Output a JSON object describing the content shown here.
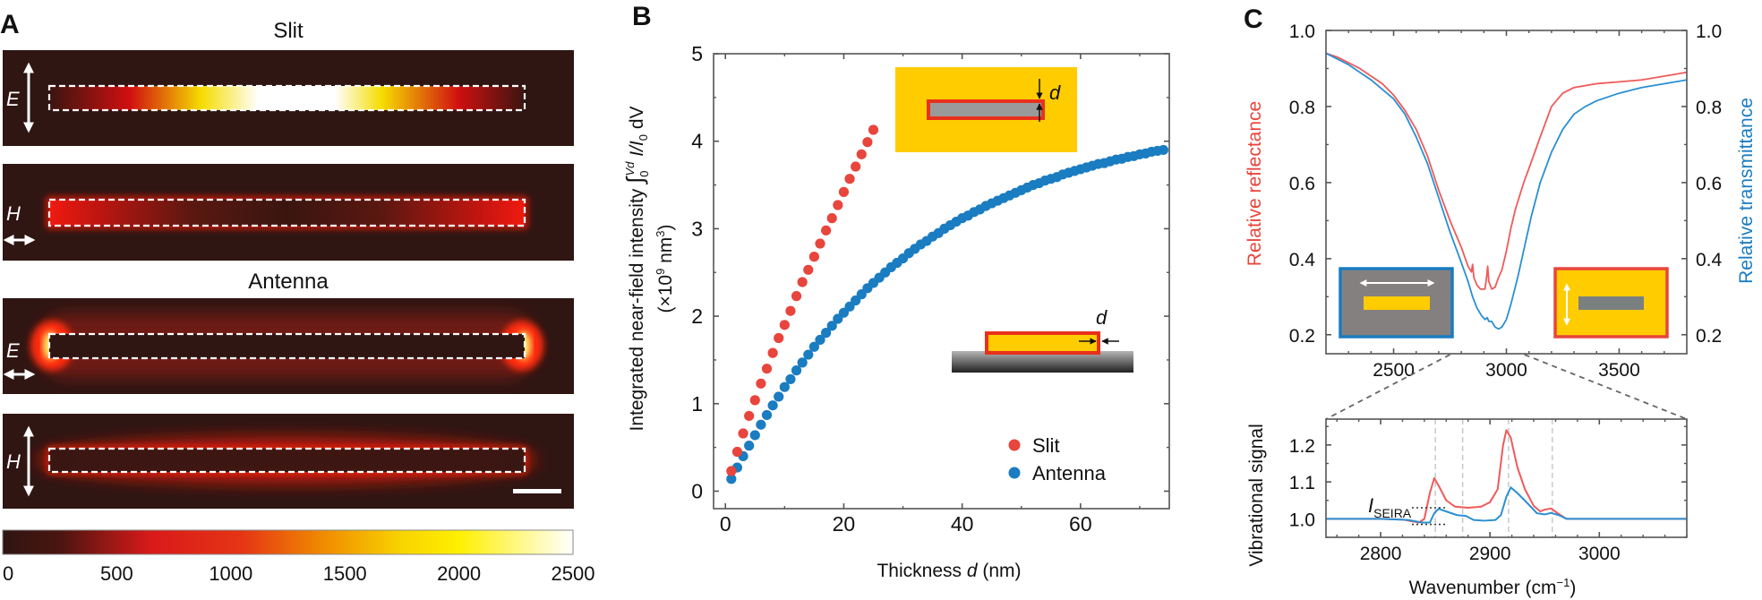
{
  "panel_labels": {
    "a": "A",
    "b": "B",
    "c": "C"
  },
  "panel_a": {
    "titles": {
      "slit": "Slit",
      "antenna": "Antenna"
    },
    "maps": [
      {
        "structure": "Slit",
        "field": "E",
        "polarization": "vertical"
      },
      {
        "structure": "Slit",
        "field": "H",
        "polarization": "horizontal"
      },
      {
        "structure": "Antenna",
        "field": "E",
        "polarization": "horizontal"
      },
      {
        "structure": "Antenna",
        "field": "H",
        "polarization": "vertical"
      }
    ],
    "colorbar": {
      "range": [
        0,
        2500
      ],
      "ticks": [
        "0",
        "500",
        "1000",
        "1500",
        "2000",
        "2500"
      ],
      "colormap": [
        "#2e1512",
        "#d81a1a",
        "#f08000",
        "#fff200",
        "#ffffff"
      ]
    },
    "colors": {
      "background": "#2f1613",
      "outline": "#ffffff"
    }
  },
  "chart_data": [
    {
      "panel": "B",
      "type": "scatter",
      "xlabel": {
        "pre": "Thickness ",
        "var": "d",
        "post": " (nm)"
      },
      "ylabel": {
        "line1": "Integrated near-field intensity ",
        "integral": "∫",
        "lower": "0",
        "upper": "Vd",
        "mid": " I/I",
        "sub": "0",
        "end": " dV",
        "line2_pre": "(×10",
        "line2_exp": "9",
        "line2_mid": " nm",
        "line2_exp2": "3",
        "line2_end": ")"
      },
      "xlim": [
        -2,
        75
      ],
      "ylim": [
        -0.2,
        5
      ],
      "xticks": [
        "0",
        "20",
        "40",
        "60"
      ],
      "xtick_values": [
        0,
        20,
        40,
        60
      ],
      "yticks": [
        "0",
        "1",
        "2",
        "3",
        "4",
        "5"
      ],
      "ytick_values": [
        0,
        1,
        2,
        3,
        4,
        5
      ],
      "legend": {
        "position": "bottom-right",
        "entries": [
          "Slit",
          "Antenna"
        ]
      },
      "inset_labels": {
        "top": "d",
        "bottom": "d"
      },
      "series": [
        {
          "name": "Slit",
          "color": "#e8453c",
          "x": [
            1,
            2,
            3,
            4,
            5,
            6,
            7,
            8,
            9,
            10,
            11,
            12,
            13,
            14,
            15,
            16,
            17,
            18,
            19,
            20,
            21,
            22,
            23,
            24,
            25
          ],
          "y": [
            0.23,
            0.45,
            0.66,
            0.86,
            1.04,
            1.23,
            1.4,
            1.58,
            1.75,
            1.9,
            2.06,
            2.23,
            2.39,
            2.53,
            2.68,
            2.83,
            2.98,
            3.12,
            3.27,
            3.42,
            3.57,
            3.71,
            3.85,
            3.99,
            4.13
          ]
        },
        {
          "name": "Antenna",
          "color": "#1a7cc1",
          "x": [
            1,
            2,
            3,
            4,
            5,
            6,
            7,
            8,
            9,
            10,
            11,
            12,
            13,
            14,
            15,
            16,
            17,
            18,
            19,
            20,
            21,
            22,
            23,
            24,
            25,
            26,
            27,
            28,
            29,
            30,
            31,
            32,
            33,
            34,
            35,
            36,
            37,
            38,
            39,
            40,
            41,
            42,
            43,
            44,
            45,
            46,
            47,
            48,
            49,
            50,
            51,
            52,
            53,
            54,
            55,
            56,
            57,
            58,
            59,
            60,
            61,
            62,
            63,
            64,
            65,
            66,
            67,
            68,
            69,
            70,
            71,
            72,
            73,
            74
          ],
          "y": [
            0.14,
            0.27,
            0.4,
            0.52,
            0.64,
            0.76,
            0.87,
            0.98,
            1.08,
            1.19,
            1.28,
            1.38,
            1.47,
            1.56,
            1.65,
            1.73,
            1.81,
            1.89,
            1.97,
            2.04,
            2.11,
            2.18,
            2.25,
            2.32,
            2.38,
            2.44,
            2.5,
            2.56,
            2.61,
            2.66,
            2.72,
            2.77,
            2.82,
            2.86,
            2.91,
            2.95,
            3.0,
            3.04,
            3.08,
            3.12,
            3.15,
            3.19,
            3.22,
            3.26,
            3.29,
            3.32,
            3.35,
            3.38,
            3.41,
            3.44,
            3.47,
            3.5,
            3.52,
            3.55,
            3.57,
            3.59,
            3.62,
            3.64,
            3.66,
            3.68,
            3.7,
            3.72,
            3.74,
            3.75,
            3.77,
            3.79,
            3.8,
            3.82,
            3.83,
            3.85,
            3.86,
            3.88,
            3.89,
            3.9
          ]
        }
      ]
    },
    {
      "panel": "C-top",
      "type": "line",
      "ylabel_left": "Relative reflectance",
      "ylabel_right": "Relative transmittance",
      "xlim": [
        2200,
        3800
      ],
      "ylim": [
        0.15,
        1.0
      ],
      "xticks": [
        "2500",
        "3000",
        "3500"
      ],
      "xtick_values": [
        2500,
        3000,
        3500
      ],
      "yticks": [
        "0.2",
        "0.4",
        "0.6",
        "0.8",
        "1.0"
      ],
      "ytick_values": [
        0.2,
        0.4,
        0.6,
        0.8,
        1.0
      ],
      "series": [
        {
          "name": "Relative reflectance",
          "axis": "left",
          "color": "#f05a5a",
          "points": [
            [
              2200,
              0.94
            ],
            [
              2250,
              0.93
            ],
            [
              2300,
              0.915
            ],
            [
              2350,
              0.9
            ],
            [
              2400,
              0.88
            ],
            [
              2450,
              0.86
            ],
            [
              2500,
              0.83
            ],
            [
              2550,
              0.79
            ],
            [
              2600,
              0.74
            ],
            [
              2650,
              0.67
            ],
            [
              2700,
              0.58
            ],
            [
              2750,
              0.5
            ],
            [
              2800,
              0.43
            ],
            [
              2830,
              0.38
            ],
            [
              2845,
              0.365
            ],
            [
              2850,
              0.385
            ],
            [
              2856,
              0.35
            ],
            [
              2870,
              0.33
            ],
            [
              2885,
              0.32
            ],
            [
              2905,
              0.32
            ],
            [
              2912,
              0.35
            ],
            [
              2917,
              0.38
            ],
            [
              2922,
              0.34
            ],
            [
              2935,
              0.32
            ],
            [
              2950,
              0.325
            ],
            [
              2965,
              0.35
            ],
            [
              2980,
              0.37
            ],
            [
              3000,
              0.42
            ],
            [
              3020,
              0.48
            ],
            [
              3040,
              0.53
            ],
            [
              3077,
              0.6
            ],
            [
              3120,
              0.67
            ],
            [
              3150,
              0.72
            ],
            [
              3200,
              0.8
            ],
            [
              3250,
              0.835
            ],
            [
              3300,
              0.85
            ],
            [
              3400,
              0.86
            ],
            [
              3500,
              0.865
            ],
            [
              3600,
              0.87
            ],
            [
              3700,
              0.88
            ],
            [
              3800,
              0.89
            ]
          ]
        },
        {
          "name": "Relative transmittance",
          "axis": "right",
          "color": "#2b8fd0",
          "points": [
            [
              2200,
              0.94
            ],
            [
              2300,
              0.91
            ],
            [
              2400,
              0.87
            ],
            [
              2500,
              0.82
            ],
            [
              2550,
              0.78
            ],
            [
              2600,
              0.72
            ],
            [
              2650,
              0.65
            ],
            [
              2700,
              0.56
            ],
            [
              2750,
              0.47
            ],
            [
              2800,
              0.39
            ],
            [
              2830,
              0.34
            ],
            [
              2850,
              0.3
            ],
            [
              2870,
              0.27
            ],
            [
              2890,
              0.25
            ],
            [
              2905,
              0.24
            ],
            [
              2915,
              0.245
            ],
            [
              2922,
              0.235
            ],
            [
              2935,
              0.235
            ],
            [
              2950,
              0.22
            ],
            [
              2965,
              0.215
            ],
            [
              2980,
              0.22
            ],
            [
              3000,
              0.24
            ],
            [
              3020,
              0.28
            ],
            [
              3050,
              0.35
            ],
            [
              3080,
              0.43
            ],
            [
              3110,
              0.51
            ],
            [
              3150,
              0.6
            ],
            [
              3200,
              0.68
            ],
            [
              3250,
              0.74
            ],
            [
              3300,
              0.78
            ],
            [
              3350,
              0.8
            ],
            [
              3400,
              0.815
            ],
            [
              3500,
              0.835
            ],
            [
              3600,
              0.85
            ],
            [
              3700,
              0.86
            ],
            [
              3800,
              0.87
            ]
          ]
        }
      ],
      "insets": [
        {
          "border": "#1a7cc1",
          "fill": "#858080",
          "bar": "#ffcc00",
          "polarization": "horizontal"
        },
        {
          "border": "#e8453c",
          "fill": "#ffcc00",
          "bar": "#7a8080",
          "polarization": "vertical"
        }
      ]
    },
    {
      "panel": "C-bottom",
      "type": "line",
      "ylabel": "Vibrational signal",
      "xlabel": {
        "pre": "Wavenumber (cm",
        "sup": "−1",
        "post": ")"
      },
      "xlim": [
        2750,
        3080
      ],
      "ylim": [
        0.95,
        1.27
      ],
      "xticks": [
        "2800",
        "2900",
        "3000"
      ],
      "xtick_values": [
        2800,
        2900,
        3000
      ],
      "yticks": [
        "1.0",
        "1.1",
        "1.2"
      ],
      "ytick_values": [
        1.0,
        1.1,
        1.2
      ],
      "reference_lines": [
        2850,
        2875,
        2917,
        2957
      ],
      "annotation": {
        "symbol": "I",
        "subscript": "SEIRA",
        "upper": 1.03,
        "lower": 0.985
      },
      "series": [
        {
          "name": "Relative reflectance",
          "color": "#f05a5a",
          "points": [
            [
              2750,
              1.0
            ],
            [
              2800,
              1.0
            ],
            [
              2820,
              0.998
            ],
            [
              2835,
              0.99
            ],
            [
              2840,
              1.0
            ],
            [
              2845,
              1.07
            ],
            [
              2849,
              1.11
            ],
            [
              2853,
              1.09
            ],
            [
              2860,
              1.05
            ],
            [
              2868,
              1.033
            ],
            [
              2880,
              1.03
            ],
            [
              2892,
              1.033
            ],
            [
              2900,
              1.045
            ],
            [
              2907,
              1.08
            ],
            [
              2912,
              1.2
            ],
            [
              2915,
              1.24
            ],
            [
              2919,
              1.22
            ],
            [
              2925,
              1.14
            ],
            [
              2932,
              1.08
            ],
            [
              2940,
              1.035
            ],
            [
              2946,
              1.02
            ],
            [
              2950,
              1.025
            ],
            [
              2956,
              1.028
            ],
            [
              2962,
              1.015
            ],
            [
              2970,
              1.0
            ],
            [
              3000,
              1.0
            ],
            [
              3080,
              1.0
            ]
          ]
        },
        {
          "name": "Relative transmittance",
          "color": "#2b8fd0",
          "points": [
            [
              2750,
              1.0
            ],
            [
              2800,
              1.0
            ],
            [
              2825,
              0.997
            ],
            [
              2838,
              0.99
            ],
            [
              2845,
              0.99
            ],
            [
              2849,
              1.015
            ],
            [
              2853,
              1.027
            ],
            [
              2860,
              1.02
            ],
            [
              2870,
              1.01
            ],
            [
              2878,
              1.008
            ],
            [
              2885,
              0.997
            ],
            [
              2895,
              0.995
            ],
            [
              2905,
              0.997
            ],
            [
              2910,
              1.01
            ],
            [
              2915,
              1.06
            ],
            [
              2919,
              1.085
            ],
            [
              2925,
              1.07
            ],
            [
              2935,
              1.04
            ],
            [
              2943,
              1.015
            ],
            [
              2950,
              1.012
            ],
            [
              2956,
              1.016
            ],
            [
              2963,
              1.01
            ],
            [
              2970,
              1.0
            ],
            [
              3000,
              1.0
            ],
            [
              3080,
              1.0
            ]
          ]
        }
      ]
    }
  ]
}
